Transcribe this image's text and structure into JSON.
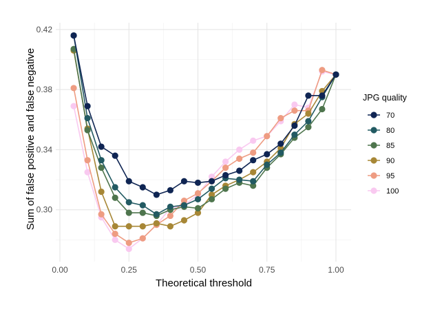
{
  "chart_data": {
    "type": "line",
    "title": "",
    "xlabel": "Theoretical threshold",
    "ylabel": "Sum of false positive and false negative",
    "xlim": [
      -0.015,
      1.055
    ],
    "ylim": [
      0.2655,
      0.4245
    ],
    "x_ticks": [
      0.0,
      0.25,
      0.5,
      0.75,
      1.0
    ],
    "x_tick_labels": [
      "0.00",
      "0.25",
      "0.50",
      "0.75",
      "1.00"
    ],
    "y_ticks": [
      0.3,
      0.34,
      0.38,
      0.42
    ],
    "y_tick_labels": [
      "0.30",
      "0.34",
      "0.38",
      "0.42"
    ],
    "grid": true,
    "legend": {
      "title": "JPG quality",
      "position": "right"
    },
    "x": [
      0.05,
      0.1,
      0.15,
      0.2,
      0.25,
      0.3,
      0.35,
      0.4,
      0.45,
      0.5,
      0.55,
      0.6,
      0.65,
      0.7,
      0.75,
      0.8,
      0.85,
      0.9,
      0.95,
      1.0
    ],
    "series": [
      {
        "name": "100",
        "color": "#f9c9f0",
        "values": [
          0.369,
          0.325,
          0.295,
          0.28,
          0.274,
          0.281,
          0.29,
          0.301,
          0.303,
          0.31,
          0.322,
          0.332,
          0.34,
          0.346,
          0.349,
          0.359,
          0.37,
          0.368,
          0.392,
          0.39
        ]
      },
      {
        "name": "95",
        "color": "#ee9c82",
        "values": [
          0.381,
          0.333,
          0.297,
          0.284,
          0.278,
          0.281,
          0.29,
          0.296,
          0.306,
          0.311,
          0.319,
          0.328,
          0.334,
          0.338,
          0.349,
          0.361,
          0.366,
          0.366,
          0.393,
          0.39
        ]
      },
      {
        "name": "90",
        "color": "#a78736",
        "values": [
          0.406,
          0.354,
          0.312,
          0.289,
          0.289,
          0.289,
          0.291,
          0.289,
          0.293,
          0.298,
          0.31,
          0.316,
          0.32,
          0.325,
          0.332,
          0.341,
          0.357,
          0.364,
          0.379,
          0.39
        ]
      },
      {
        "name": "85",
        "color": "#4e754d",
        "values": [
          0.407,
          0.353,
          0.328,
          0.308,
          0.298,
          0.298,
          0.296,
          0.3,
          0.302,
          0.301,
          0.307,
          0.314,
          0.318,
          0.316,
          0.328,
          0.337,
          0.348,
          0.355,
          0.367,
          0.39
        ]
      },
      {
        "name": "80",
        "color": "#225a62",
        "values": [
          0.416,
          0.361,
          0.333,
          0.315,
          0.305,
          0.303,
          0.297,
          0.302,
          0.303,
          0.307,
          0.314,
          0.321,
          0.32,
          0.319,
          0.33,
          0.338,
          0.35,
          0.359,
          0.375,
          0.39
        ]
      },
      {
        "name": "70",
        "color": "#0f2553",
        "values": [
          0.416,
          0.369,
          0.342,
          0.336,
          0.319,
          0.315,
          0.31,
          0.313,
          0.319,
          0.318,
          0.319,
          0.323,
          0.326,
          0.333,
          0.337,
          0.344,
          0.356,
          0.376,
          0.376,
          0.39
        ]
      }
    ],
    "legend_order": [
      "70",
      "80",
      "85",
      "90",
      "95",
      "100"
    ]
  }
}
